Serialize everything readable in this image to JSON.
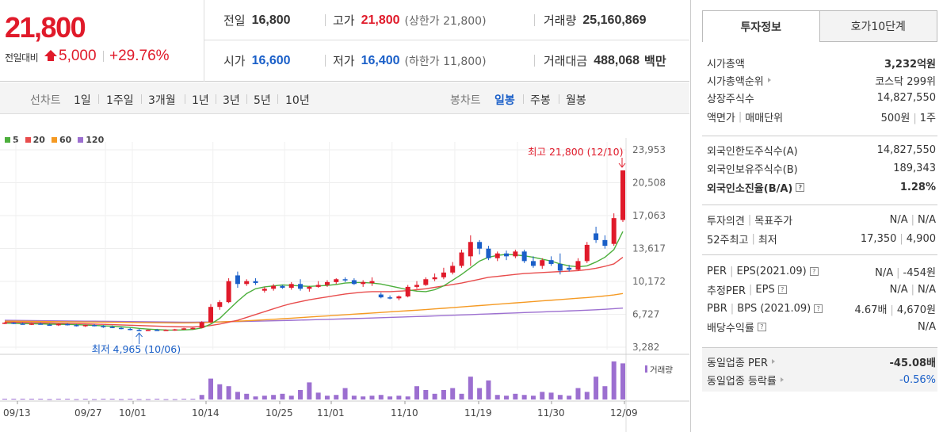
{
  "header": {
    "price": "21,800",
    "change_label": "전일대비",
    "change_value": "5,000",
    "change_pct": "+29.76%",
    "stats": {
      "prev_close_label": "전일",
      "prev_close": "16,800",
      "high_label": "고가",
      "high": "21,800",
      "upper_limit": "(상한가 21,800)",
      "volume_label": "거래량",
      "volume": "25,160,869",
      "open_label": "시가",
      "open": "16,600",
      "low_label": "저가",
      "low": "16,400",
      "lower_limit": "(하한가 11,800)",
      "amount_label": "거래대금",
      "amount": "488,068",
      "amount_unit": "백만"
    }
  },
  "period_bar": {
    "line_label": "선차트",
    "line_items": [
      "1일",
      "1주일",
      "3개월",
      "1년",
      "3년",
      "5년",
      "10년"
    ],
    "candle_label": "봉차트",
    "candle_items": [
      "일봉",
      "주봉",
      "월봉"
    ],
    "candle_active": "일봉"
  },
  "chart_data": {
    "type": "candlestick",
    "legend": [
      {
        "name": "5",
        "color": "#4caf3c"
      },
      {
        "name": "20",
        "color": "#e84c4c"
      },
      {
        "name": "60",
        "color": "#f59a23"
      },
      {
        "name": "120",
        "color": "#9c6fd0"
      }
    ],
    "y_ticks": [
      "23,953",
      "20,508",
      "17,063",
      "13,617",
      "10,172",
      "6,727",
      "3,282"
    ],
    "ylim": [
      3282,
      23953
    ],
    "x_ticks": [
      "09/13",
      "09/27",
      "10/01",
      "10/14",
      "10/25",
      "11/01",
      "11/10",
      "11/19",
      "11/30",
      "12/09"
    ],
    "max_annotation": "최고 21,800 (12/10)",
    "min_annotation": "최저 4,965 (10/06)",
    "volume_label": "거래량",
    "candles": [
      [
        5800,
        5900,
        5700,
        5850
      ],
      [
        5850,
        5900,
        5700,
        5750
      ],
      [
        5750,
        5850,
        5650,
        5700
      ],
      [
        5700,
        5800,
        5600,
        5750
      ],
      [
        5750,
        5850,
        5650,
        5650
      ],
      [
        5650,
        5750,
        5550,
        5600
      ],
      [
        5600,
        5750,
        5500,
        5700
      ],
      [
        5700,
        5800,
        5550,
        5600
      ],
      [
        5600,
        5700,
        5450,
        5500
      ],
      [
        5500,
        5650,
        5400,
        5600
      ],
      [
        5600,
        5700,
        5450,
        5500
      ],
      [
        5500,
        5600,
        5300,
        5400
      ],
      [
        5400,
        5550,
        5300,
        5300
      ],
      [
        5300,
        5400,
        5150,
        5200
      ],
      [
        5200,
        5300,
        5050,
        5100
      ],
      [
        5100,
        5200,
        4965,
        5000
      ],
      [
        5000,
        5150,
        4980,
        5100
      ],
      [
        5100,
        5200,
        5000,
        5050
      ],
      [
        5050,
        5150,
        4980,
        5100
      ],
      [
        5100,
        5200,
        5000,
        5150
      ],
      [
        5150,
        5300,
        5100,
        5250
      ],
      [
        5250,
        5350,
        5150,
        5300
      ],
      [
        5300,
        6000,
        5250,
        5900
      ],
      [
        5900,
        7800,
        5800,
        7500
      ],
      [
        7500,
        8200,
        7200,
        8000
      ],
      [
        8000,
        10500,
        7900,
        10200
      ],
      [
        10800,
        11200,
        9500,
        9900
      ],
      [
        9900,
        10400,
        9700,
        10200
      ],
      [
        10200,
        10500,
        9800,
        10000
      ],
      [
        9200,
        9600,
        9000,
        9400
      ],
      [
        9400,
        9900,
        9200,
        9700
      ],
      [
        9700,
        9800,
        9400,
        9500
      ],
      [
        9500,
        10100,
        9300,
        9900
      ],
      [
        9900,
        10400,
        9200,
        9400
      ],
      [
        9400,
        9700,
        9100,
        9600
      ],
      [
        9600,
        10200,
        9500,
        9800
      ],
      [
        9800,
        10300,
        9600,
        10100
      ],
      [
        10100,
        10500,
        9900,
        10400
      ],
      [
        10400,
        10600,
        10100,
        10300
      ],
      [
        10300,
        10500,
        9800,
        9900
      ],
      [
        9900,
        10300,
        9600,
        10100
      ],
      [
        10000,
        10600,
        9700,
        10200
      ],
      [
        8800,
        9000,
        8400,
        8500
      ],
      [
        8500,
        8700,
        8300,
        8400
      ],
      [
        8400,
        8700,
        8200,
        8600
      ],
      [
        8600,
        9800,
        8500,
        9600
      ],
      [
        9600,
        10200,
        9400,
        9800
      ],
      [
        9800,
        10600,
        9700,
        10400
      ],
      [
        10400,
        11000,
        10200,
        10600
      ],
      [
        10600,
        11600,
        10400,
        11100
      ],
      [
        11100,
        12200,
        10900,
        11800
      ],
      [
        11800,
        13500,
        11600,
        13200
      ],
      [
        12800,
        15000,
        11800,
        14300
      ],
      [
        14300,
        14500,
        13000,
        13600
      ],
      [
        13600,
        13900,
        12400,
        12600
      ],
      [
        12600,
        13300,
        12300,
        13100
      ],
      [
        13100,
        13400,
        12400,
        12800
      ],
      [
        12800,
        13500,
        12600,
        13300
      ],
      [
        13300,
        13500,
        12100,
        12300
      ],
      [
        12300,
        12800,
        11600,
        11800
      ],
      [
        11800,
        12600,
        11500,
        12400
      ],
      [
        12400,
        12800,
        11800,
        12000
      ],
      [
        12000,
        13100,
        10900,
        11300
      ],
      [
        11600,
        11900,
        11200,
        11400
      ],
      [
        11400,
        12600,
        11300,
        12300
      ],
      [
        12300,
        14300,
        12100,
        14000
      ],
      [
        15200,
        15900,
        14200,
        14500
      ],
      [
        14500,
        15000,
        13600,
        13900
      ],
      [
        14100,
        17300,
        13900,
        16800
      ],
      [
        16600,
        21800,
        16400,
        21800
      ]
    ],
    "ma5": [
      5800,
      5780,
      5750,
      5740,
      5720,
      5700,
      5680,
      5660,
      5640,
      5600,
      5560,
      5520,
      5480,
      5420,
      5350,
      5250,
      5180,
      5120,
      5080,
      5070,
      5090,
      5130,
      5300,
      5700,
      6300,
      7200,
      8100,
      8900,
      9400,
      9600,
      9700,
      9800,
      9750,
      9700,
      9650,
      9700,
      9750,
      9850,
      10000,
      10050,
      10050,
      10000,
      9900,
      9700,
      9500,
      9300,
      9150,
      9100,
      9300,
      9700,
      10300,
      10900,
      11600,
      12300,
      12700,
      12900,
      13000,
      12950,
      12850,
      12700,
      12500,
      12300,
      12000,
      11800,
      11700,
      11800,
      12200,
      12700,
      13500,
      15400
    ],
    "ma20": [
      5900,
      5890,
      5880,
      5860,
      5840,
      5820,
      5800,
      5780,
      5760,
      5730,
      5700,
      5670,
      5640,
      5610,
      5580,
      5550,
      5520,
      5490,
      5460,
      5430,
      5410,
      5400,
      5450,
      5550,
      5700,
      5900,
      6100,
      6400,
      6700,
      7000,
      7300,
      7600,
      7850,
      8050,
      8250,
      8400,
      8550,
      8700,
      8850,
      8950,
      9050,
      9100,
      9100,
      9100,
      9150,
      9200,
      9300,
      9400,
      9550,
      9700,
      9850,
      10000,
      10200,
      10400,
      10600,
      10700,
      10800,
      10900,
      11000,
      11050,
      11100,
      11150,
      11200,
      11250,
      11300,
      11400,
      11550,
      11750,
      12000,
      12700
    ],
    "ma60": [
      6000,
      6000,
      5990,
      5980,
      5970,
      5960,
      5950,
      5940,
      5930,
      5920,
      5910,
      5900,
      5890,
      5880,
      5870,
      5860,
      5850,
      5840,
      5830,
      5820,
      5820,
      5830,
      5850,
      5880,
      5920,
      5960,
      6000,
      6050,
      6100,
      6150,
      6200,
      6260,
      6320,
      6380,
      6440,
      6500,
      6560,
      6620,
      6680,
      6740,
      6800,
      6860,
      6920,
      6980,
      7040,
      7100,
      7160,
      7220,
      7290,
      7360,
      7430,
      7500,
      7570,
      7640,
      7710,
      7780,
      7850,
      7920,
      7990,
      8060,
      8130,
      8200,
      8270,
      8340,
      8410,
      8480,
      8560,
      8650,
      8760,
      8900
    ],
    "ma120": [
      6100,
      6090,
      6080,
      6070,
      6060,
      6050,
      6040,
      6030,
      6020,
      6010,
      6000,
      5990,
      5980,
      5970,
      5960,
      5950,
      5940,
      5930,
      5920,
      5910,
      5905,
      5905,
      5910,
      5920,
      5935,
      5950,
      5970,
      5990,
      6010,
      6030,
      6050,
      6070,
      6095,
      6120,
      6145,
      6170,
      6195,
      6220,
      6250,
      6280,
      6310,
      6340,
      6370,
      6400,
      6430,
      6460,
      6490,
      6520,
      6555,
      6590,
      6625,
      6660,
      6695,
      6730,
      6765,
      6800,
      6835,
      6870,
      6905,
      6940,
      6975,
      7010,
      7045,
      7080,
      7120,
      7160,
      7200,
      7250,
      7310,
      7380
    ],
    "volumes": [
      0.02,
      0.02,
      0.02,
      0.02,
      0.02,
      0.01,
      0.02,
      0.02,
      0.01,
      0.02,
      0.01,
      0.02,
      0.02,
      0.01,
      0.02,
      0.01,
      0.01,
      0.02,
      0.01,
      0.01,
      0.02,
      0.02,
      0.12,
      0.55,
      0.4,
      0.35,
      0.2,
      0.15,
      0.08,
      0.1,
      0.12,
      0.15,
      0.1,
      0.25,
      0.45,
      0.18,
      0.1,
      0.12,
      0.3,
      0.1,
      0.08,
      0.1,
      0.12,
      0.08,
      0.1,
      0.08,
      0.35,
      0.25,
      0.15,
      0.25,
      0.3,
      0.15,
      0.6,
      0.3,
      0.5,
      0.12,
      0.1,
      0.15,
      0.12,
      0.1,
      0.2,
      0.18,
      0.12,
      0.1,
      0.3,
      0.2,
      0.6,
      0.35,
      1.0,
      0.95
    ]
  },
  "sidebar": {
    "tabs": [
      "투자정보",
      "호가10단계"
    ],
    "rows": [
      {
        "k": "시가총액",
        "v": "3,232억원"
      },
      {
        "k": "시가총액순위",
        "v": "코스닥 299위"
      },
      {
        "k": "상장주식수",
        "v": "14,827,550"
      },
      {
        "k": "액면가",
        "k2": "매매단위",
        "v": "500원",
        "v2": "1주"
      },
      {
        "k": "외국인한도주식수(A)",
        "v": "14,827,550"
      },
      {
        "k": "외국인보유주식수(B)",
        "v": "189,343"
      },
      {
        "k": "외국인소진율(B/A)",
        "v": "1.28%"
      },
      {
        "k": "투자의견",
        "k2": "목표주가",
        "v": "N/A",
        "v2": "N/A"
      },
      {
        "k": "52주최고",
        "k2": "최저",
        "v": "17,350",
        "v2": "4,900"
      },
      {
        "k": "PER",
        "k2": "EPS(2021.09)",
        "v": "N/A",
        "v2": "-454원"
      },
      {
        "k": "추정PER",
        "k2": "EPS",
        "v": "N/A",
        "v2": "N/A"
      },
      {
        "k": "PBR",
        "k2": "BPS (2021.09)",
        "v": "4.67배",
        "v2": "4,670원"
      },
      {
        "k": "배당수익률",
        "v": "N/A"
      },
      {
        "k": "동일업종 PER",
        "v": "-45.08배"
      },
      {
        "k": "동일업종 등락률",
        "v": "-0.56%"
      }
    ]
  },
  "colors": {
    "up": "#e01a2a",
    "down": "#1a5fc8"
  }
}
